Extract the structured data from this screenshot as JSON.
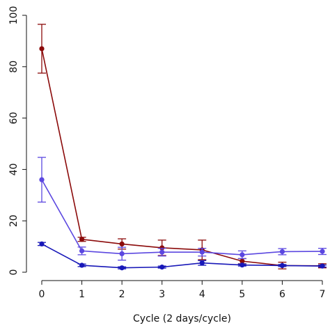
{
  "chart_data": {
    "type": "line",
    "title": "",
    "xlabel": "Cycle (2 days/cycle)",
    "ylabel": "",
    "x": [
      0,
      1,
      2,
      3,
      4,
      5,
      6,
      7
    ],
    "xlim": [
      0,
      7
    ],
    "ylim": [
      0,
      100
    ],
    "xticks": [
      0,
      1,
      2,
      3,
      4,
      5,
      6,
      7
    ],
    "yticks": [
      0,
      20,
      40,
      60,
      80,
      100
    ],
    "grid": false,
    "legend": "none",
    "series": [
      {
        "color": "#8b0a0a",
        "values": [
          87,
          12.8,
          11,
          9.5,
          8.7,
          4.3,
          2.6,
          2.5
        ],
        "error": [
          9.5,
          0.8,
          2.0,
          3.0,
          3.8,
          1.0,
          1.3,
          0.8
        ]
      },
      {
        "color": "#5b47e0",
        "values": [
          36,
          8.3,
          7.2,
          7.8,
          7.8,
          6.8,
          8.0,
          8.1
        ],
        "error": [
          8.7,
          1.5,
          2.5,
          1.5,
          1.5,
          1.5,
          1.2,
          1.2
        ]
      },
      {
        "color": "#1818b8",
        "values": [
          11,
          2.7,
          1.7,
          2.0,
          3.6,
          2.8,
          2.6,
          2.4
        ],
        "error": [
          0.6,
          0.5,
          0.4,
          0.4,
          0.9,
          0.4,
          0.4,
          0.4
        ]
      }
    ]
  }
}
